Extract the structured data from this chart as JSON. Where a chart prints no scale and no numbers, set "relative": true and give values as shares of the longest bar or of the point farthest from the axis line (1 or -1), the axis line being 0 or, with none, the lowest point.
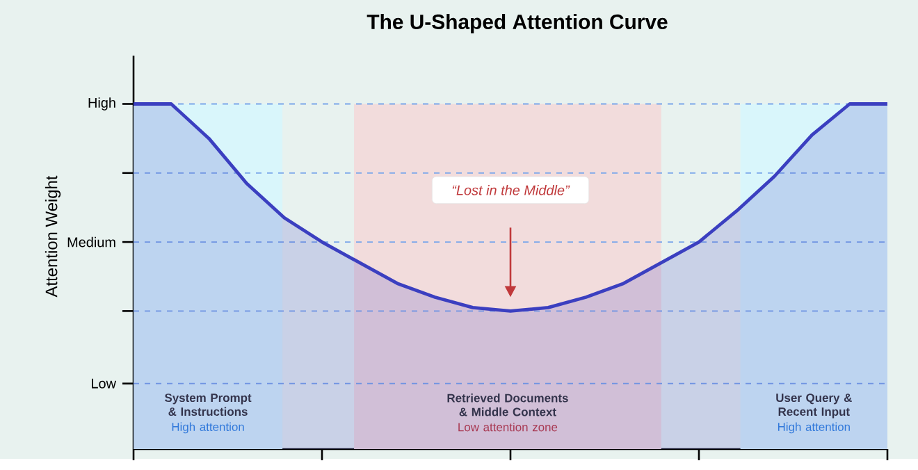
{
  "chart_data": {
    "type": "area",
    "title": "The U-Shaped Attention Curve",
    "ylabel": "Attention Weight",
    "relative": true,
    "categories": [
      null,
      null,
      null,
      null,
      null,
      null,
      null,
      null,
      null,
      null,
      null,
      null,
      null,
      null,
      null,
      null,
      null,
      null,
      null,
      null,
      null
    ],
    "series": [
      {
        "color": "#3b3fc0",
        "values": [
          1,
          1,
          0.9,
          0.77,
          0.67,
          0.6,
          0.54,
          0.48,
          0.44,
          0.41,
          0.4,
          0.41,
          0.44,
          0.48,
          0.54,
          0.6,
          0.69,
          0.79,
          0.91,
          1,
          1
        ]
      }
    ],
    "ref_lines": [
      {
        "axis": "y",
        "value": 1,
        "label": "High",
        "line_style": "dashed",
        "color": "#7aa6ea"
      },
      {
        "axis": "y",
        "value": 0.8,
        "line_style": "dashed",
        "color": "#7aa6ea"
      },
      {
        "axis": "y",
        "value": 0.6,
        "label": "Medium",
        "line_style": "dashed",
        "color": "#7aa6ea"
      },
      {
        "axis": "y",
        "value": 0.4,
        "line_style": "dashed",
        "color": "#7aa6ea"
      },
      {
        "axis": "y",
        "value": 0.19,
        "label": "Low",
        "line_style": "dashed",
        "color": "#7aa6ea"
      }
    ],
    "annotations": [
      "System Prompt & Instructions",
      "High attention",
      "Retrieved Documents & Middle Context",
      "Low attention zone",
      "User Query & Recent Input",
      "High attention",
      "“Lost in the Middle”"
    ]
  }
}
